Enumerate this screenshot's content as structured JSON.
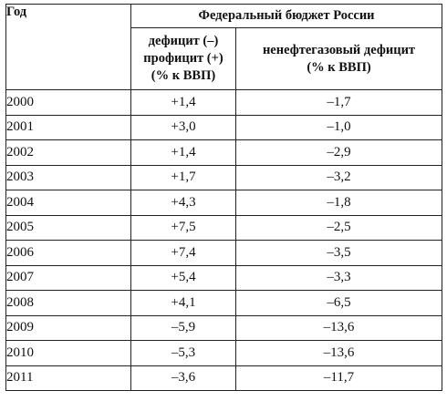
{
  "header": {
    "year": "Год",
    "group": "Федеральный бюджет России",
    "deficit": [
      "дефицит (–)",
      "профицит (+)",
      "(% к ВВП)"
    ],
    "nonoil": [
      "ненефтегазовый дефицит",
      "(% к ВВП)"
    ]
  },
  "rows": [
    {
      "year": "2000",
      "deficit": "+1,4",
      "nonoil": "–1,7"
    },
    {
      "year": "2001",
      "deficit": "+3,0",
      "nonoil": "–1,0"
    },
    {
      "year": "2002",
      "deficit": "+1,4",
      "nonoil": "–2,9"
    },
    {
      "year": "2003",
      "deficit": "+1,7",
      "nonoil": "–3,2"
    },
    {
      "year": "2004",
      "deficit": "+4,3",
      "nonoil": "–1,8"
    },
    {
      "year": "2005",
      "deficit": "+7,5",
      "nonoil": "–2,5"
    },
    {
      "year": "2006",
      "deficit": "+7,4",
      "nonoil": "–3,5"
    },
    {
      "year": "2007",
      "deficit": "+5,4",
      "nonoil": "–3,3"
    },
    {
      "year": "2008",
      "deficit": "+4,1",
      "nonoil": "–6,5"
    },
    {
      "year": "2009",
      "deficit": "–5,9",
      "nonoil": "–13,6"
    },
    {
      "year": "2010",
      "deficit": "–5,3",
      "nonoil": "–13,6"
    },
    {
      "year": "2011",
      "deficit": "–3,6",
      "nonoil": "–11,7"
    }
  ]
}
